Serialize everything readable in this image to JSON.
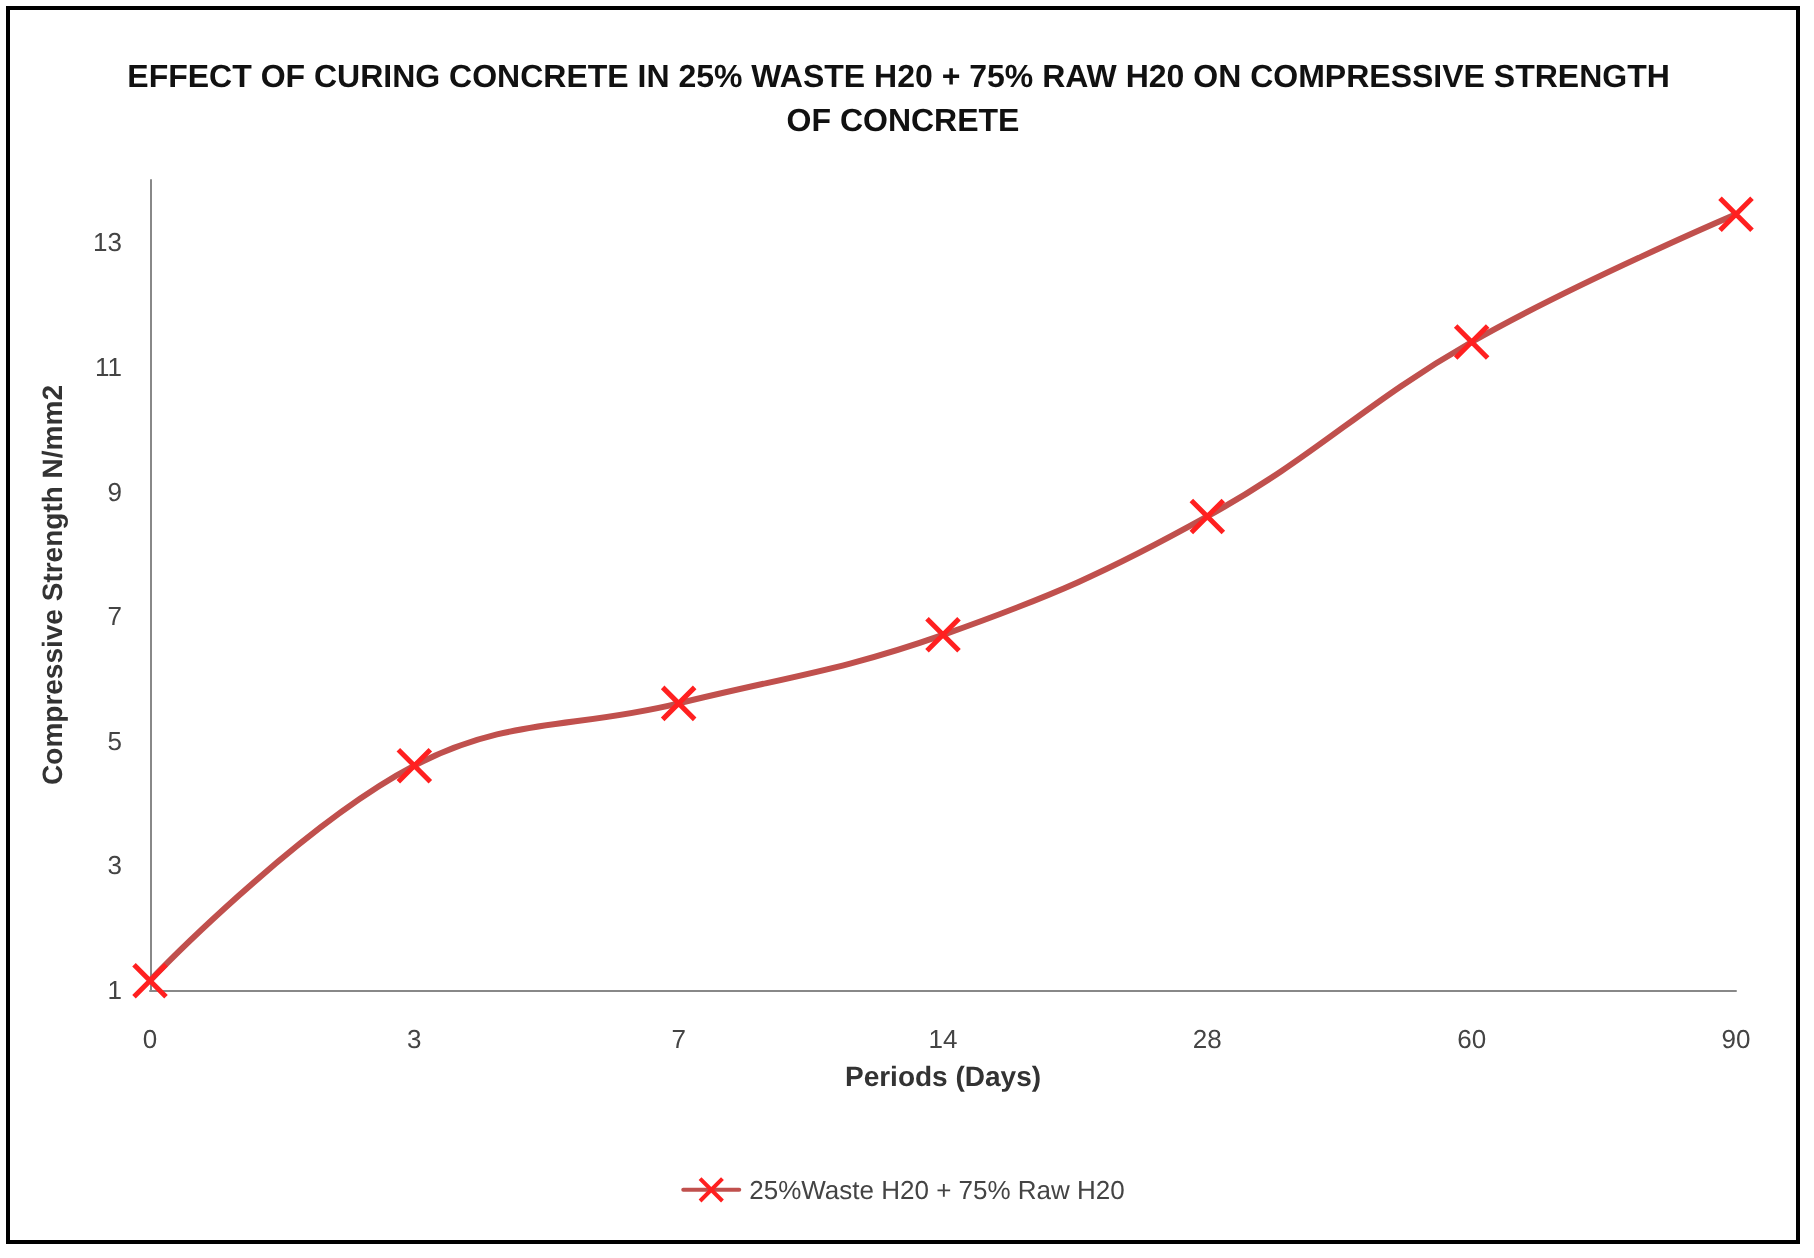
{
  "chart_data": {
    "type": "line",
    "title": "EFFECT OF CURING CONCRETE IN 25% WASTE H20 + 75% RAW H20 ON COMPRESSIVE STRENGTH OF CONCRETE",
    "xlabel": "Periods (Days)",
    "ylabel": "Compressive Strength N/mm2",
    "categories": [
      "0",
      "3",
      "7",
      "14",
      "28",
      "60",
      "90"
    ],
    "series": [
      {
        "name": "25%Waste H20 + 75% Raw H20",
        "color": "#c0504d",
        "values": [
          1.15,
          4.6,
          5.6,
          6.7,
          8.6,
          11.4,
          13.45
        ]
      }
    ],
    "ylim": [
      1,
      14
    ],
    "yticks": [
      1,
      3,
      5,
      7,
      9,
      11,
      13
    ],
    "grid": false,
    "legend": "bottom",
    "marker": "cross",
    "line_style": "solid"
  }
}
